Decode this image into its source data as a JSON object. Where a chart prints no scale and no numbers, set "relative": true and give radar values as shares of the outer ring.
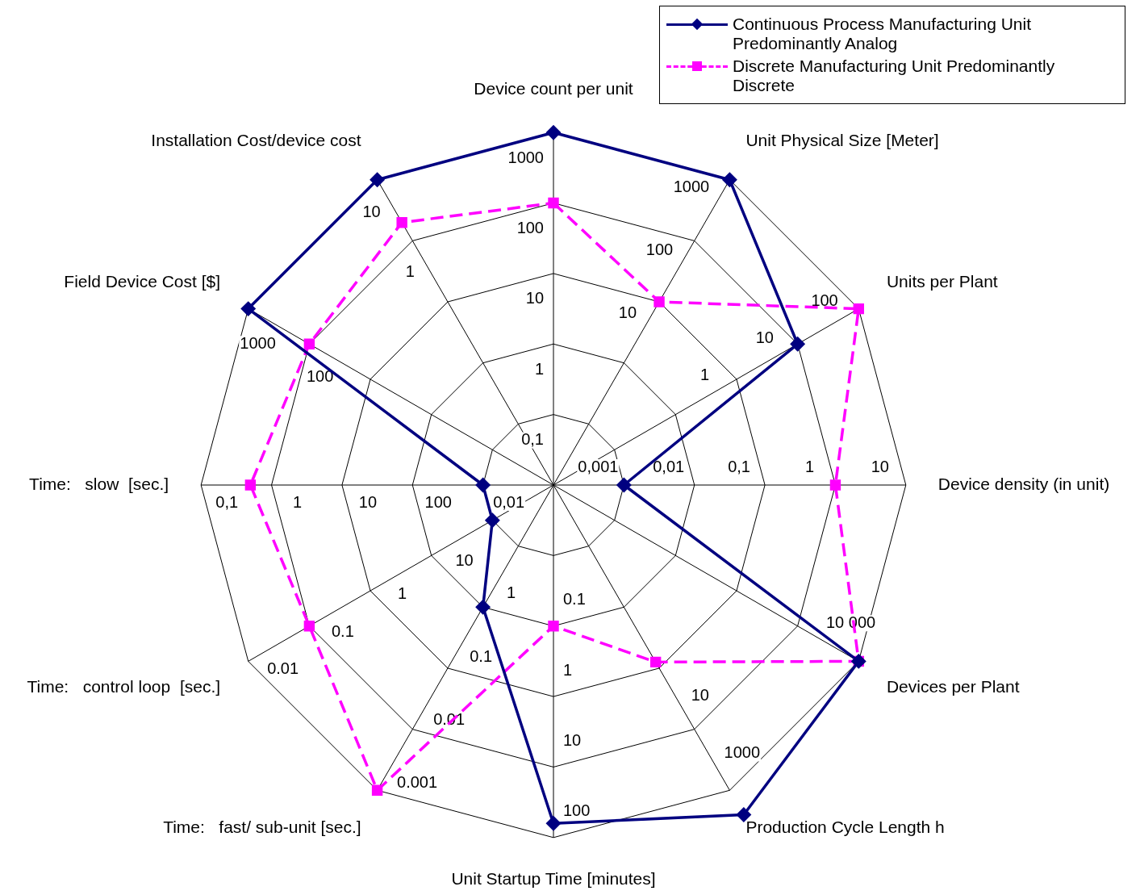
{
  "chart_data": {
    "type": "radar",
    "relative": true,
    "grid": true,
    "legend": "top right",
    "categories": [
      "Device count per unit",
      "Unit Physical Size [Meter]",
      "Units per Plant",
      "Device density (in unit)",
      "Devices per Plant",
      "Production Cycle Length h",
      "Unit Startup Time [minutes]",
      "Time:   fast/ sub-unit [sec.]",
      "Time:   control loop  [sec.]",
      "Time:   slow  [sec.]",
      "Field Device Cost [$]",
      "Installation Cost/device cost"
    ],
    "series": [
      {
        "name": "Continuous Process Manufacturing Unit Predominantly Analog",
        "color": "#000080",
        "marker": "diamond",
        "line_style": "solid",
        "values": [
          1.0,
          1.0,
          0.8,
          0.2,
          1.0,
          1.08,
          0.96,
          0.4,
          0.2,
          0.2,
          1.0,
          1.0
        ]
      },
      {
        "name": "Discrete Manufacturing Unit Predominantly Discrete",
        "color": "#ff00ff",
        "marker": "square",
        "line_style": "dashed",
        "values": [
          0.8,
          0.6,
          1.0,
          0.8,
          1.0,
          0.58,
          0.4,
          1.0,
          0.8,
          0.86,
          0.8,
          0.86
        ]
      }
    ],
    "annotations": [
      {
        "text": "0,1",
        "x": "Device count per unit"
      },
      {
        "text": "1",
        "x": "Device count per unit"
      },
      {
        "text": "10",
        "x": "Device count per unit"
      },
      {
        "text": "100",
        "x": "Device count per unit"
      },
      {
        "text": "1000",
        "x": "Device count per unit"
      },
      {
        "text": "10",
        "x": "Unit Physical Size [Meter]"
      },
      {
        "text": "100",
        "x": "Unit Physical Size [Meter]"
      },
      {
        "text": "1000",
        "x": "Unit Physical Size [Meter]"
      },
      {
        "text": "1",
        "x": "Units per Plant"
      },
      {
        "text": "10",
        "x": "Units per Plant"
      },
      {
        "text": "100",
        "x": "Units per Plant"
      },
      {
        "text": "0,001",
        "x": "Device density (in unit)"
      },
      {
        "text": "0,01",
        "x": "Device density (in unit)"
      },
      {
        "text": "0,1",
        "x": "Device density (in unit)"
      },
      {
        "text": "1",
        "x": "Device density (in unit)"
      },
      {
        "text": "10",
        "x": "Device density (in unit)"
      },
      {
        "text": "10 000",
        "x": "Devices per Plant"
      },
      {
        "text": "10",
        "x": "Production Cycle Length h"
      },
      {
        "text": "1000",
        "x": "Production Cycle Length h"
      },
      {
        "text": "0.1",
        "x": "Unit Startup Time [minutes]"
      },
      {
        "text": "1",
        "x": "Unit Startup Time [minutes]"
      },
      {
        "text": "10",
        "x": "Unit Startup Time [minutes]"
      },
      {
        "text": "100",
        "x": "Unit Startup Time [minutes]"
      },
      {
        "text": "1",
        "x": "Time:   fast/ sub-unit [sec.]"
      },
      {
        "text": "0.1",
        "x": "Time:   fast/ sub-unit [sec.]"
      },
      {
        "text": "0.01",
        "x": "Time:   fast/ sub-unit [sec.]"
      },
      {
        "text": "0.001",
        "x": "Time:   fast/ sub-unit [sec.]"
      },
      {
        "text": "10",
        "x": "Time:   control loop  [sec.]"
      },
      {
        "text": "1",
        "x": "Time:   control loop  [sec.]"
      },
      {
        "text": "0.1",
        "x": "Time:   control loop  [sec.]"
      },
      {
        "text": "0.01",
        "x": "Time:   control loop  [sec.]"
      },
      {
        "text": "0,01",
        "x": "Time:   slow  [sec.]"
      },
      {
        "text": "100",
        "x": "Time:   slow  [sec.]"
      },
      {
        "text": "10",
        "x": "Time:   slow  [sec.]"
      },
      {
        "text": "1",
        "x": "Time:   slow  [sec.]"
      },
      {
        "text": "0,1",
        "x": "Time:   slow  [sec.]"
      },
      {
        "text": "100",
        "x": "Field Device Cost [$]"
      },
      {
        "text": "1000",
        "x": "Field Device Cost [$]"
      },
      {
        "text": "1",
        "x": "Installation Cost/device cost"
      },
      {
        "text": "10",
        "x": "Installation Cost/device cost"
      }
    ]
  }
}
